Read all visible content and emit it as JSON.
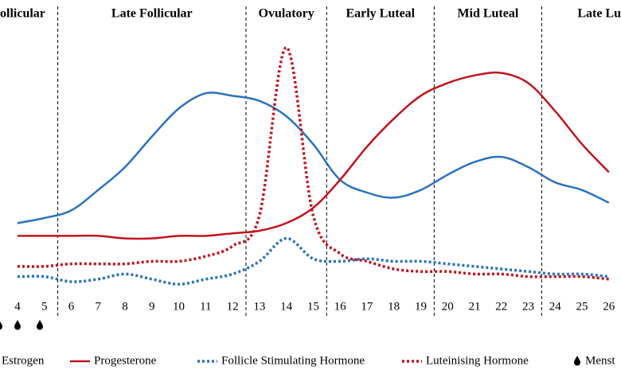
{
  "chart_data": {
    "type": "line",
    "phases": [
      "ollicular",
      "Late Follicular",
      "Ovulatory",
      "Early Luteal",
      "Mid Luteal",
      "Late Lu"
    ],
    "phase_boundaries": [
      5.5,
      12.5,
      15.5,
      19.5,
      23.5
    ],
    "x": [
      4,
      5,
      6,
      7,
      8,
      9,
      10,
      11,
      12,
      13,
      14,
      15,
      16,
      17,
      18,
      19,
      20,
      21,
      22,
      23,
      24,
      25,
      26
    ],
    "xlim": [
      3.35,
      26.45
    ],
    "xticks": [
      4,
      5,
      6,
      7,
      8,
      9,
      10,
      11,
      12,
      13,
      14,
      15,
      16,
      17,
      18,
      19,
      20,
      21,
      22,
      23,
      24,
      25,
      26
    ],
    "ylim": [
      0,
      100
    ],
    "series": [
      {
        "name": "Estrogen",
        "color": "#2a72c0",
        "style": "solid",
        "values": [
          28,
          30,
          33,
          41,
          50,
          62,
          73,
          79,
          78,
          76,
          70,
          59,
          45,
          40,
          38,
          41,
          47,
          52,
          54,
          50,
          44,
          41,
          36
        ]
      },
      {
        "name": "Progesterone",
        "color": "#c0141c",
        "style": "solid",
        "values": [
          23,
          23,
          23,
          23,
          22,
          22,
          23,
          23,
          24,
          25,
          28,
          34,
          45,
          58,
          69,
          78,
          83,
          86,
          87,
          83,
          72,
          59,
          48
        ]
      },
      {
        "name": "Follicle Stimulating Hormone",
        "color": "#2a72c0",
        "style": "dotted",
        "values": [
          7,
          7,
          5,
          6,
          8,
          6,
          4,
          6,
          8,
          13,
          22,
          14,
          13,
          14,
          13,
          13,
          12,
          11,
          10,
          9,
          8,
          8,
          7
        ]
      },
      {
        "name": "Luteinising Hormone",
        "color": "#c0141c",
        "style": "dotted",
        "values": [
          11,
          11,
          12,
          12,
          12,
          13,
          13,
          15,
          19,
          31,
          97,
          31,
          16,
          13,
          10,
          9,
          9,
          8,
          8,
          7,
          7,
          7,
          6
        ]
      }
    ],
    "menstruation_label": "Menst"
  }
}
